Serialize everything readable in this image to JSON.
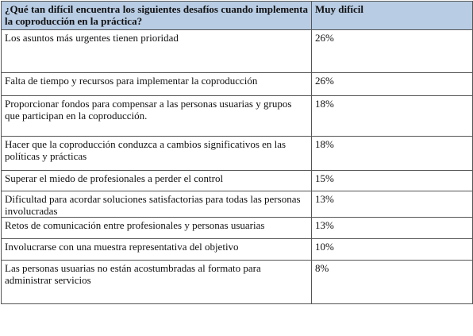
{
  "table": {
    "header": {
      "question": "¿Qué tan difícil encuentra los siguientes desafíos cuando implementa  la coproducción  en la práctica?",
      "column": "Muy difícil"
    },
    "rows": [
      {
        "challenge": "Los asuntos más urgentes tienen prioridad",
        "value": "26%"
      },
      {
        "challenge": "Falta de tiempo y recursos para implementar la coproducción",
        "value": "26%"
      },
      {
        "challenge": "Proporcionar fondos para compensar a las personas usuarias y grupos que participan en la coproducción.",
        "value": "18%"
      },
      {
        "challenge": "Hacer que la coproducción conduzca a cambios significativos en las políticas y prácticas",
        "value": "18%"
      },
      {
        "challenge": "Superar el miedo de profesionales a perder el control",
        "value": "15%"
      },
      {
        "challenge": "Dificultad para acordar soluciones satisfactorias para todas las personas involucradas",
        "value": "13%"
      },
      {
        "challenge": "Retos de comunicación entre profesionales y personas usuarias",
        "value": "13%"
      },
      {
        "challenge": "Involucrarse con una muestra representativa del objetivo",
        "value": "10%"
      },
      {
        "challenge": "Las personas usuarias no están acostumbradas al formato para administrar servicios",
        "value": "8%"
      }
    ]
  }
}
